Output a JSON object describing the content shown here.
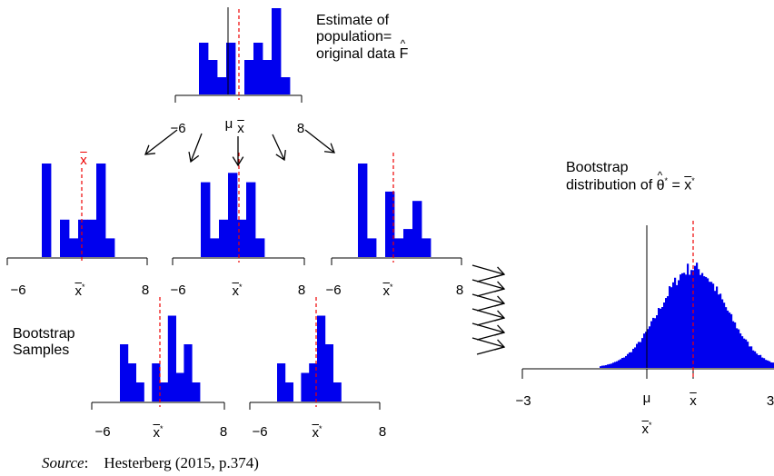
{
  "labels": {
    "population_line1": "Estimate of",
    "population_line2": "population=",
    "population_line3": "original data",
    "F": "F",
    "bootstrap_samples_line1": "Bootstrap",
    "bootstrap_samples_line2": "Samples",
    "bootstrap_dist_line1": "Bootstrap",
    "bootstrap_dist_prefix": "distribution of",
    "theta": "θ",
    "star": "*",
    "equals": "=",
    "x": "x",
    "mu": "μ"
  },
  "ticks": {
    "small_min": "−6",
    "small_max": "8",
    "big_min": "−3",
    "big_max": "3"
  },
  "source": {
    "label": "Source",
    "text": "Hesterberg (2015, p.374)"
  },
  "colors": {
    "bar": "#0000ee",
    "mean_line": "#ee0000",
    "axis": "#000000"
  },
  "histograms": [
    {
      "id": "original",
      "bars": [
        6,
        4,
        2,
        6,
        0,
        4,
        6,
        4,
        10,
        2
      ]
    },
    {
      "id": "sample-1",
      "bars": [
        10,
        0,
        4,
        2,
        4,
        4,
        10,
        2
      ]
    },
    {
      "id": "sample-2",
      "bars": [
        8,
        2,
        4,
        9,
        4,
        8,
        2
      ]
    },
    {
      "id": "sample-3",
      "bars": [
        10,
        2,
        0,
        7,
        2,
        3,
        6,
        2
      ]
    },
    {
      "id": "sample-4",
      "bars": [
        6,
        4,
        2,
        0,
        4,
        2,
        9,
        3,
        6,
        2
      ]
    },
    {
      "id": "sample-5",
      "bars": [
        4,
        2,
        0,
        3,
        4,
        9,
        6,
        2
      ]
    }
  ]
}
